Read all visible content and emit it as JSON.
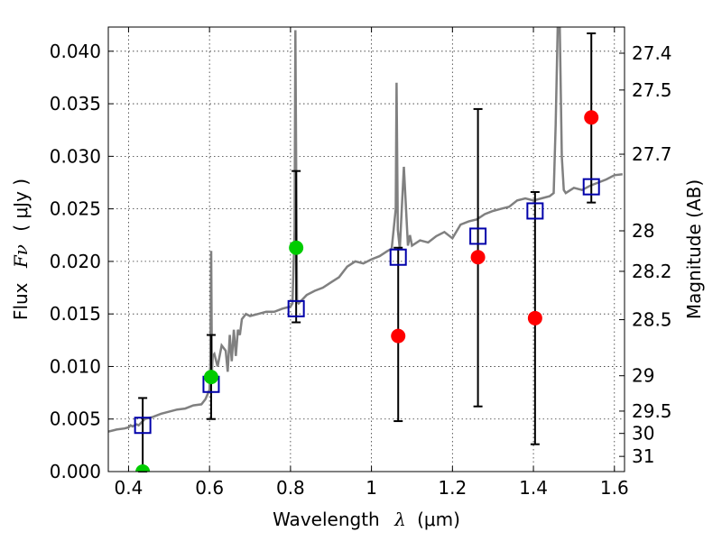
{
  "chart_data": {
    "type": "scatter",
    "xlabel_text": "Wavelength",
    "xlabel_symbol": "λ",
    "xlabel_unit": "(μm)",
    "ylabel_text": "Flux",
    "ylabel_symbol": "Fν",
    "ylabel_unit": "( μJy )",
    "y2label": "Magnitude (AB)",
    "xlim": [
      0.35,
      1.625
    ],
    "ylim": [
      0.0,
      0.0423
    ],
    "grid": true,
    "x_ticks": [
      0.4,
      0.6,
      0.8,
      1.0,
      1.2,
      1.4,
      1.6
    ],
    "x_tick_labels": [
      "0.4",
      "0.6",
      "0.8",
      "1",
      "1.2",
      "1.4",
      "1.6"
    ],
    "y_ticks": [
      0.0,
      0.005,
      0.01,
      0.015,
      0.02,
      0.025,
      0.03,
      0.035,
      0.04
    ],
    "y_tick_labels": [
      "0.000",
      "0.005",
      "0.010",
      "0.015",
      "0.020",
      "0.025",
      "0.030",
      "0.035",
      "0.040"
    ],
    "mag_ticks": [
      27.4,
      27.5,
      27.7,
      28,
      28.2,
      28.5,
      29,
      29.5,
      30,
      31
    ],
    "mag_tick_labels": [
      "27.4",
      "27.5",
      "27.7",
      "28",
      "28.2",
      "28.5",
      "29",
      "29.5",
      "30",
      "31"
    ],
    "sed_model": {
      "color": "#808080",
      "x": [
        0.35,
        0.37,
        0.39,
        0.4,
        0.405,
        0.41,
        0.42,
        0.425,
        0.43,
        0.44,
        0.46,
        0.48,
        0.5,
        0.52,
        0.54,
        0.56,
        0.58,
        0.59,
        0.6,
        0.602,
        0.604,
        0.606,
        0.608,
        0.612,
        0.62,
        0.63,
        0.64,
        0.645,
        0.65,
        0.655,
        0.66,
        0.665,
        0.67,
        0.675,
        0.68,
        0.69,
        0.7,
        0.72,
        0.74,
        0.76,
        0.78,
        0.8,
        0.805,
        0.81,
        0.812,
        0.814,
        0.816,
        0.82,
        0.84,
        0.86,
        0.88,
        0.9,
        0.92,
        0.94,
        0.96,
        0.98,
        1.0,
        1.02,
        1.04,
        1.05,
        1.06,
        1.062,
        1.065,
        1.07,
        1.08,
        1.09,
        1.095,
        1.1,
        1.12,
        1.14,
        1.16,
        1.18,
        1.2,
        1.22,
        1.24,
        1.26,
        1.28,
        1.3,
        1.32,
        1.34,
        1.36,
        1.38,
        1.4,
        1.42,
        1.44,
        1.45,
        1.455,
        1.46,
        1.465,
        1.47,
        1.475,
        1.48,
        1.5,
        1.52,
        1.54,
        1.56,
        1.58,
        1.6,
        1.62
      ],
      "y": [
        0.0038,
        0.004,
        0.0041,
        0.0042,
        0.0044,
        0.0043,
        0.0045,
        0.0044,
        0.0046,
        0.005,
        0.0052,
        0.0055,
        0.0057,
        0.0059,
        0.006,
        0.0063,
        0.0064,
        0.0069,
        0.0078,
        0.0105,
        0.021,
        0.0095,
        0.011,
        0.0112,
        0.01,
        0.012,
        0.0115,
        0.0095,
        0.013,
        0.0105,
        0.0135,
        0.011,
        0.0135,
        0.013,
        0.0145,
        0.015,
        0.0148,
        0.015,
        0.0152,
        0.0152,
        0.0155,
        0.0157,
        0.016,
        0.023,
        0.042,
        0.0285,
        0.0162,
        0.016,
        0.0168,
        0.0172,
        0.0175,
        0.018,
        0.0185,
        0.0195,
        0.02,
        0.0198,
        0.0202,
        0.0205,
        0.021,
        0.0212,
        0.025,
        0.037,
        0.023,
        0.0212,
        0.029,
        0.0215,
        0.0225,
        0.0215,
        0.022,
        0.0218,
        0.0224,
        0.0228,
        0.0222,
        0.0235,
        0.0238,
        0.024,
        0.0245,
        0.0248,
        0.025,
        0.0252,
        0.0258,
        0.026,
        0.0258,
        0.026,
        0.0262,
        0.0265,
        0.033,
        0.0425,
        0.0425,
        0.03,
        0.0268,
        0.0265,
        0.027,
        0.0268,
        0.0272,
        0.0275,
        0.0278,
        0.0282,
        0.0283
      ]
    },
    "model_photometry": {
      "color": "#0000aa",
      "x": [
        0.435,
        0.604,
        0.814,
        1.066,
        1.263,
        1.404,
        1.543
      ],
      "y": [
        0.0044,
        0.0083,
        0.0155,
        0.0204,
        0.0224,
        0.0248,
        0.0271
      ]
    },
    "observed_green": {
      "color": "#00cc00",
      "x": [
        0.435,
        0.604,
        0.814
      ],
      "y": [
        0.0,
        0.009,
        0.0213
      ],
      "err_low": [
        0.0,
        0.005,
        0.0142
      ],
      "err_high": [
        0.007,
        0.013,
        0.0286
      ]
    },
    "observed_red": {
      "color": "#ff0000",
      "x": [
        1.066,
        1.263,
        1.404,
        1.543
      ],
      "y": [
        0.0129,
        0.0204,
        0.0146,
        0.0337
      ],
      "err_low": [
        0.0048,
        0.0062,
        0.0026,
        0.0256
      ],
      "err_high": [
        0.0213,
        0.0345,
        0.0266,
        0.0417
      ]
    }
  }
}
